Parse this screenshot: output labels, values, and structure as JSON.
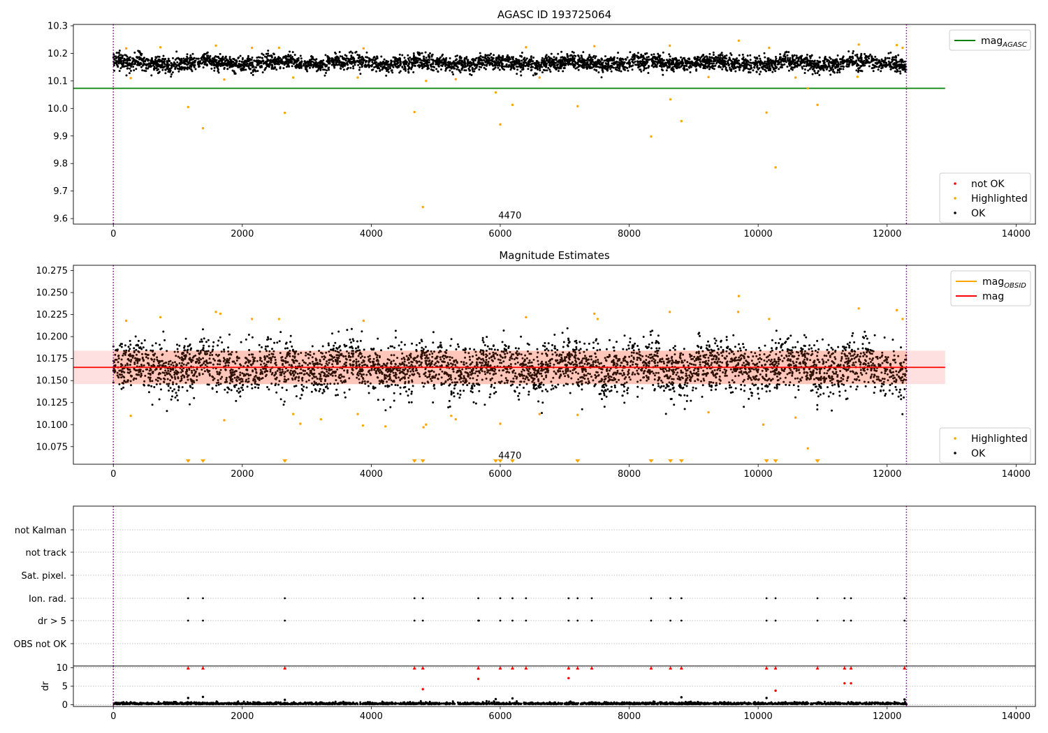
{
  "chart_data": [
    {
      "type": "scatter",
      "title": "AGASC ID 193725064",
      "xlim": [
        -620,
        14300
      ],
      "ylim": [
        9.58,
        10.305
      ],
      "x_ticks": [
        "0",
        "2000",
        "4000",
        "6000",
        "8000",
        "10000",
        "12000",
        "14000"
      ],
      "y_ticks": [
        "10.3",
        "10.2",
        "10.1",
        "10.0",
        "9.9",
        "9.8",
        "9.7",
        "9.6"
      ],
      "obs_boundaries": [
        0,
        12300
      ],
      "annotation": "4470",
      "reference_lines": [
        {
          "name": "magAGASC",
          "value": 10.073,
          "color": "#008000"
        }
      ],
      "ok_band": {
        "x_range": [
          0,
          12300
        ],
        "low": 10.12,
        "high": 10.21
      },
      "series": [
        {
          "name": "not OK",
          "color": "#ff0000",
          "points": []
        },
        {
          "name": "Highlighted",
          "color": "#ffa500",
          "points": [
            [
              1160,
              10.005
            ],
            [
              1390,
              9.928
            ],
            [
              2660,
              9.984
            ],
            [
              4670,
              9.987
            ],
            [
              4800,
              9.642
            ],
            [
              5930,
              10.058
            ],
            [
              6000,
              9.942
            ],
            [
              6190,
              10.013
            ],
            [
              7200,
              10.008
            ],
            [
              8340,
              9.898
            ],
            [
              8640,
              10.033
            ],
            [
              8810,
              9.954
            ],
            [
              10130,
              9.985
            ],
            [
              10270,
              9.786
            ],
            [
              10920,
              10.013
            ],
            [
              10770,
              10.073
            ],
            [
              270,
              10.11
            ],
            [
              1720,
              10.105
            ],
            [
              2790,
              10.112
            ],
            [
              3790,
              10.112
            ],
            [
              4850,
              10.1
            ],
            [
              5310,
              10.106
            ],
            [
              6610,
              10.112
            ],
            [
              9230,
              10.114
            ],
            [
              10580,
              10.112
            ],
            [
              11540,
              10.115
            ],
            [
              200,
              10.218
            ],
            [
              730,
              10.222
            ],
            [
              1590,
              10.228
            ],
            [
              2150,
              10.22
            ],
            [
              2570,
              10.22
            ],
            [
              3880,
              10.218
            ],
            [
              6400,
              10.222
            ],
            [
              7460,
              10.226
            ],
            [
              8630,
              10.228
            ],
            [
              9700,
              10.246
            ],
            [
              10170,
              10.22
            ],
            [
              11560,
              10.232
            ],
            [
              12150,
              10.23
            ],
            [
              12240,
              10.22
            ]
          ]
        },
        {
          "name": "OK",
          "color": "#000000",
          "points": []
        }
      ],
      "legends": [
        {
          "position": "upper right",
          "entries": [
            {
              "label": "magAGASC",
              "text": "mag",
              "sub": "AGASC",
              "color": "#008000",
              "marker": "line"
            }
          ]
        },
        {
          "position": "lower right",
          "entries": [
            {
              "label": "not OK",
              "text": "not OK",
              "sub": "",
              "color": "#ff0000",
              "marker": "dot"
            },
            {
              "label": "Highlighted",
              "text": "Highlighted",
              "sub": "",
              "color": "#ffa500",
              "marker": "dot"
            },
            {
              "label": "OK",
              "text": "OK",
              "sub": "",
              "color": "#000000",
              "marker": "dot"
            }
          ]
        }
      ]
    },
    {
      "type": "scatter",
      "title": "Magnitude Estimates",
      "xlim": [
        -620,
        14300
      ],
      "ylim": [
        10.055,
        10.281
      ],
      "x_ticks": [
        "0",
        "2000",
        "4000",
        "6000",
        "8000",
        "10000",
        "12000",
        "14000"
      ],
      "y_ticks": [
        "10.275",
        "10.250",
        "10.225",
        "10.200",
        "10.175",
        "10.150",
        "10.125",
        "10.100",
        "10.075"
      ],
      "obs_boundaries": [
        0,
        12300
      ],
      "annotation": "4470",
      "reference_lines": [
        {
          "name": "mag",
          "value": 10.165,
          "color": "#ff0000"
        }
      ],
      "uncertainty_band": {
        "x_range": [
          -620,
          12900
        ],
        "low": 10.146,
        "high": 10.184
      },
      "ok_band": {
        "x_range": [
          0,
          12300
        ],
        "low": 10.12,
        "high": 10.21
      },
      "out_of_range_markers": [
        1160,
        1390,
        2660,
        4670,
        4800,
        5930,
        6000,
        6190,
        7200,
        8340,
        8640,
        8810,
        10130,
        10270,
        10920
      ],
      "series": [
        {
          "name": "Highlighted",
          "color": "#ffa500",
          "points": [
            [
              270,
              10.11
            ],
            [
              1720,
              10.105
            ],
            [
              2790,
              10.112
            ],
            [
              2900,
              10.101
            ],
            [
              3220,
              10.106
            ],
            [
              3790,
              10.112
            ],
            [
              3870,
              10.099
            ],
            [
              4220,
              10.098
            ],
            [
              4850,
              10.1
            ],
            [
              4810,
              10.097
            ],
            [
              5240,
              10.11
            ],
            [
              5310,
              10.106
            ],
            [
              6000,
              10.101
            ],
            [
              6610,
              10.112
            ],
            [
              7200,
              10.111
            ],
            [
              9230,
              10.114
            ],
            [
              10080,
              10.1
            ],
            [
              10580,
              10.108
            ],
            [
              10770,
              10.073
            ],
            [
              200,
              10.218
            ],
            [
              730,
              10.222
            ],
            [
              1590,
              10.228
            ],
            [
              1660,
              10.226
            ],
            [
              2150,
              10.22
            ],
            [
              2570,
              10.22
            ],
            [
              3880,
              10.218
            ],
            [
              6400,
              10.222
            ],
            [
              7460,
              10.226
            ],
            [
              7510,
              10.22
            ],
            [
              8630,
              10.228
            ],
            [
              9700,
              10.246
            ],
            [
              9690,
              10.228
            ],
            [
              10170,
              10.22
            ],
            [
              11560,
              10.232
            ],
            [
              12150,
              10.23
            ],
            [
              12240,
              10.22
            ]
          ]
        },
        {
          "name": "OK",
          "color": "#000000",
          "points": []
        }
      ],
      "legends": [
        {
          "position": "upper right",
          "entries": [
            {
              "label": "magOBSID",
              "text": "mag",
              "sub": "OBSID",
              "color": "#ffa500",
              "marker": "line"
            },
            {
              "label": "mag",
              "text": "mag",
              "sub": "",
              "color": "#ff0000",
              "marker": "line"
            }
          ]
        },
        {
          "position": "lower right",
          "entries": [
            {
              "label": "Highlighted",
              "text": "Highlighted",
              "sub": "",
              "color": "#ffa500",
              "marker": "dot"
            },
            {
              "label": "OK",
              "text": "OK",
              "sub": "",
              "color": "#000000",
              "marker": "dot"
            }
          ]
        }
      ]
    },
    {
      "type": "scatter",
      "title": "",
      "xlim": [
        -620,
        14300
      ],
      "categories": [
        "not Kalman",
        "not track",
        "Sat. pixel.",
        "Ion. rad.",
        "dr > 5",
        "OBS not OK"
      ],
      "obs_boundaries": [
        0,
        12300
      ],
      "flag_events": {
        "Ion. rad.": [
          1160,
          1390,
          2660,
          4670,
          4800,
          5660,
          6000,
          6190,
          6400,
          7060,
          7200,
          7420,
          8340,
          8640,
          8810,
          10130,
          10270,
          10920,
          11340,
          11440,
          12270
        ],
        "dr > 5": [
          1160,
          1390,
          2660,
          4670,
          4800,
          5660,
          5670,
          6000,
          6190,
          6400,
          7060,
          7200,
          7420,
          8340,
          8640,
          8810,
          10130,
          10270,
          10920,
          11330,
          11440,
          12270
        ]
      }
    },
    {
      "type": "scatter",
      "title": "",
      "ylabel": "dr",
      "xlim": [
        -620,
        14300
      ],
      "ylim": [
        -0.5,
        10.5
      ],
      "x_ticks": [
        "0",
        "2000",
        "4000",
        "6000",
        "8000",
        "10000",
        "12000",
        "14000"
      ],
      "y_ticks": [
        "10",
        "5",
        "0"
      ],
      "obs_boundaries": [
        0,
        12300
      ],
      "clipped_at": 10,
      "clipped_points": [
        1160,
        1390,
        2660,
        4670,
        4800,
        5660,
        6000,
        6190,
        6400,
        7060,
        7200,
        7420,
        8340,
        8640,
        8810,
        10130,
        10270,
        10920,
        11340,
        11440,
        12270
      ],
      "series": [
        {
          "name": "dr > 5",
          "color": "#ff0000",
          "points": [
            [
              5660,
              7
            ],
            [
              7060,
              7.2
            ],
            [
              11340,
              5.8
            ],
            [
              11440,
              5.8
            ]
          ]
        },
        {
          "name": "dr < 5",
          "color": "#ff0000",
          "points": [
            [
              4800,
              4.2
            ],
            [
              10270,
              3.8
            ]
          ]
        },
        {
          "name": "dr",
          "color": "#000000",
          "points": [
            [
              1160,
              1.8
            ],
            [
              1390,
              2.1
            ],
            [
              2660,
              1.3
            ],
            [
              5930,
              1.5
            ],
            [
              6190,
              1.7
            ],
            [
              8810,
              2.0
            ],
            [
              10130,
              1.8
            ],
            [
              12270,
              1.4
            ]
          ]
        }
      ]
    }
  ]
}
